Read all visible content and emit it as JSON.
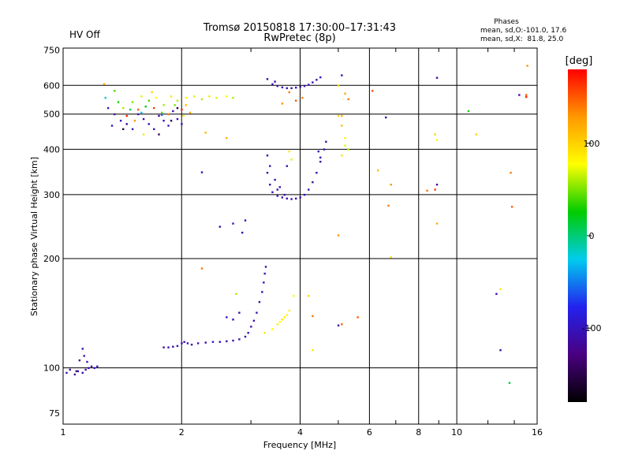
{
  "status_label": "HV Off",
  "status_color": "#dd0000",
  "title_line1": "Tromsø 20150818 17:30:00–17:31:43",
  "title_line2": "RwPretec (8p)",
  "phases": {
    "heading": "Phases",
    "line_o": "mean, sd,O:-101.0, 17.6",
    "line_x": "mean, sd,X:  81.8, 25.0"
  },
  "chart_data": {
    "type": "scatter",
    "xlabel": "Frequency [MHz]",
    "ylabel": "Stationary phase Virtual Height [km]",
    "x_scale": "log",
    "y_scale": "log",
    "xlim": [
      1,
      16
    ],
    "ylim": [
      70,
      760
    ],
    "x_ticks": [
      1,
      2,
      4,
      6,
      8,
      10,
      16
    ],
    "x_minor": [
      3,
      5,
      7,
      9,
      12,
      14
    ],
    "y_ticks": [
      75,
      100,
      200,
      300,
      400,
      500,
      600,
      750
    ],
    "grid": true,
    "colorbar": {
      "label": "[deg]",
      "range": [
        -180,
        180
      ],
      "ticks": [
        100,
        0,
        -100
      ],
      "colors": [
        "#000000",
        "#4a0080",
        "#2222ee",
        "#00ccee",
        "#00cc00",
        "#ffff00",
        "#ff9900",
        "#ff0000"
      ]
    },
    "series": [
      {
        "points": [
          [
            1.02,
            97,
            -105
          ],
          [
            1.04,
            99,
            -110
          ],
          [
            1.07,
            96,
            -120
          ],
          [
            1.09,
            98,
            -100
          ],
          [
            1.12,
            97,
            -110
          ],
          [
            1.14,
            99,
            -105
          ],
          [
            1.16,
            100,
            -115
          ],
          [
            1.18,
            101,
            -110
          ],
          [
            1.2,
            100,
            -100
          ],
          [
            1.22,
            101,
            -105
          ],
          [
            1.13,
            108,
            -110
          ],
          [
            1.1,
            105,
            -120
          ],
          [
            1.15,
            104,
            -100
          ],
          [
            1.12,
            113,
            -105
          ],
          [
            1.08,
            98,
            -130
          ]
        ]
      },
      {
        "points": [
          [
            1.8,
            114,
            -110
          ],
          [
            1.85,
            114,
            -105
          ],
          [
            1.9,
            114.5,
            -110
          ],
          [
            1.95,
            115,
            -100
          ],
          [
            2.0,
            117,
            -105
          ],
          [
            2.03,
            118,
            -110
          ],
          [
            2.07,
            117,
            -100
          ],
          [
            2.12,
            116,
            -110
          ],
          [
            2.2,
            117,
            -105
          ],
          [
            2.3,
            117.5,
            -110
          ],
          [
            2.4,
            118,
            -100
          ],
          [
            2.5,
            118,
            -105
          ],
          [
            2.6,
            118.5,
            -110
          ],
          [
            2.7,
            119,
            -100
          ],
          [
            2.8,
            120,
            -105
          ],
          [
            2.9,
            122,
            -110
          ],
          [
            2.95,
            125,
            -100
          ],
          [
            3.0,
            130,
            -105
          ],
          [
            3.05,
            135,
            -110
          ],
          [
            3.1,
            142,
            -100
          ],
          [
            3.15,
            152,
            -105
          ],
          [
            3.2,
            162,
            -110
          ],
          [
            3.23,
            172,
            -100
          ],
          [
            3.25,
            182,
            -105
          ],
          [
            3.27,
            190,
            -110
          ]
        ]
      },
      {
        "points": [
          [
            2.6,
            138,
            -100
          ],
          [
            2.7,
            136,
            -110
          ],
          [
            2.8,
            142,
            -105
          ],
          [
            2.75,
            160,
            60
          ],
          [
            2.85,
            236,
            -110
          ],
          [
            2.9,
            255,
            -105
          ],
          [
            2.5,
            245,
            -110
          ],
          [
            2.7,
            250,
            -100
          ],
          [
            2.25,
            346,
            -105
          ],
          [
            2.25,
            188,
            140
          ]
        ]
      },
      {
        "points": [
          [
            3.4,
            128,
            80
          ],
          [
            3.5,
            132,
            85
          ],
          [
            3.55,
            134,
            80
          ],
          [
            3.6,
            136,
            90
          ],
          [
            3.65,
            138,
            85
          ],
          [
            3.7,
            140,
            80
          ],
          [
            3.75,
            144,
            85
          ],
          [
            3.25,
            125,
            90
          ],
          [
            3.85,
            158,
            80
          ],
          [
            4.3,
            112,
            90
          ],
          [
            4.2,
            158,
            100
          ],
          [
            4.3,
            139,
            140
          ]
        ]
      },
      {
        "points": [
          [
            3.3,
            345,
            -110
          ],
          [
            3.35,
            320,
            -105
          ],
          [
            3.4,
            305,
            -110
          ],
          [
            3.5,
            298,
            -100
          ],
          [
            3.6,
            295,
            -105
          ],
          [
            3.7,
            293,
            -110
          ],
          [
            3.8,
            292,
            -100
          ],
          [
            3.9,
            293,
            -105
          ],
          [
            4.0,
            295,
            -110
          ],
          [
            4.1,
            300,
            -100
          ],
          [
            4.2,
            310,
            -105
          ],
          [
            4.3,
            325,
            -110
          ],
          [
            4.4,
            345,
            -100
          ],
          [
            4.5,
            370,
            -105
          ],
          [
            4.6,
            400,
            -110
          ],
          [
            4.65,
            420,
            -105
          ],
          [
            3.3,
            385,
            -110
          ],
          [
            3.35,
            360,
            -100
          ],
          [
            3.45,
            330,
            -105
          ],
          [
            3.55,
            315,
            -110
          ],
          [
            3.7,
            360,
            -100
          ],
          [
            3.75,
            395,
            90
          ],
          [
            3.8,
            375,
            70
          ],
          [
            4.45,
            395,
            -110
          ],
          [
            4.5,
            380,
            -100
          ],
          [
            3.5,
            310,
            -105
          ],
          [
            3.65,
            300,
            -110
          ]
        ]
      },
      {
        "points": [
          [
            3.3,
            625,
            -110
          ],
          [
            3.4,
            605,
            -105
          ],
          [
            3.5,
            598,
            -110
          ],
          [
            3.6,
            593,
            -100
          ],
          [
            3.7,
            590,
            -105
          ],
          [
            3.8,
            590,
            -110
          ],
          [
            3.9,
            592,
            -100
          ],
          [
            4.0,
            595,
            -105
          ],
          [
            4.1,
            598,
            -110
          ],
          [
            4.2,
            603,
            -100
          ],
          [
            4.3,
            612,
            -105
          ],
          [
            4.4,
            622,
            -110
          ],
          [
            4.5,
            632,
            -100
          ],
          [
            3.45,
            615,
            -105
          ],
          [
            3.75,
            575,
            140
          ],
          [
            4.05,
            555,
            140
          ],
          [
            3.6,
            535,
            130
          ],
          [
            3.9,
            545,
            150
          ]
        ]
      },
      {
        "points": [
          [
            1.3,
            520,
            -100
          ],
          [
            1.35,
            500,
            -110
          ],
          [
            1.4,
            480,
            -105
          ],
          [
            1.45,
            470,
            -115
          ],
          [
            1.5,
            455,
            -100
          ],
          [
            1.55,
            500,
            -105
          ],
          [
            1.6,
            485,
            -110
          ],
          [
            1.65,
            470,
            -100
          ],
          [
            1.7,
            455,
            -105
          ],
          [
            1.75,
            495,
            -110
          ],
          [
            1.8,
            480,
            -100
          ],
          [
            1.85,
            465,
            -105
          ],
          [
            1.9,
            510,
            -110
          ],
          [
            1.95,
            485,
            -100
          ],
          [
            2.0,
            470,
            -105
          ],
          [
            1.33,
            465,
            -100
          ],
          [
            1.42,
            520,
            60
          ],
          [
            1.5,
            540,
            50
          ],
          [
            1.58,
            560,
            70
          ],
          [
            1.65,
            545,
            40
          ],
          [
            1.72,
            555,
            80
          ],
          [
            1.8,
            530,
            60
          ],
          [
            1.88,
            560,
            90
          ],
          [
            1.95,
            545,
            60
          ],
          [
            2.05,
            555,
            80
          ],
          [
            2.15,
            560,
            70
          ],
          [
            2.25,
            550,
            60
          ],
          [
            2.35,
            560,
            90
          ],
          [
            2.45,
            555,
            70
          ],
          [
            2.6,
            560,
            80
          ],
          [
            2.7,
            555,
            60
          ],
          [
            1.38,
            540,
            30
          ],
          [
            1.48,
            515,
            10
          ],
          [
            1.62,
            525,
            20
          ],
          [
            1.78,
            505,
            40
          ],
          [
            1.92,
            530,
            50
          ],
          [
            2.02,
            495,
            90
          ],
          [
            2.1,
            505,
            120
          ],
          [
            1.45,
            495,
            170
          ],
          [
            1.55,
            515,
            150
          ],
          [
            1.7,
            520,
            160
          ],
          [
            1.85,
            500,
            140
          ],
          [
            2.0,
            515,
            170
          ],
          [
            1.52,
            480,
            130
          ],
          [
            1.28,
            555,
            -20
          ],
          [
            1.35,
            580,
            40
          ],
          [
            1.6,
            440,
            90
          ],
          [
            2.3,
            445,
            110
          ],
          [
            2.6,
            430,
            120
          ],
          [
            1.95,
            520,
            -150
          ],
          [
            1.75,
            440,
            -140
          ],
          [
            1.42,
            455,
            -150
          ],
          [
            1.68,
            575,
            100
          ],
          [
            1.78,
            498,
            -60
          ],
          [
            1.58,
            505,
            -30
          ],
          [
            2.05,
            530,
            110
          ],
          [
            1.88,
            480,
            -150
          ],
          [
            1.27,
            605,
            130
          ]
        ]
      },
      {
        "points": [
          [
            5.1,
            640,
            -110
          ],
          [
            5.0,
            600,
            100
          ],
          [
            5.2,
            570,
            120
          ],
          [
            5.3,
            550,
            140
          ],
          [
            5.0,
            495,
            100
          ],
          [
            5.1,
            465,
            110
          ],
          [
            5.2,
            430,
            80
          ],
          [
            5.2,
            410,
            70
          ],
          [
            5.3,
            400,
            60
          ],
          [
            5.1,
            385,
            90
          ],
          [
            6.1,
            580,
            150
          ],
          [
            6.6,
            490,
            -110
          ],
          [
            6.3,
            350,
            110
          ],
          [
            6.8,
            320,
            130
          ],
          [
            6.7,
            280,
            140
          ],
          [
            6.8,
            202,
            90
          ],
          [
            5.0,
            232,
            130
          ],
          [
            5.6,
            138,
            150
          ],
          [
            5.1,
            132,
            150
          ],
          [
            5.0,
            131,
            -110
          ],
          [
            8.4,
            308,
            140
          ],
          [
            8.8,
            310,
            160
          ],
          [
            8.9,
            320,
            -110
          ],
          [
            8.9,
            250,
            120
          ],
          [
            8.8,
            440,
            100
          ],
          [
            8.9,
            425,
            80
          ],
          [
            8.9,
            630,
            -120
          ],
          [
            10.7,
            510,
            30
          ],
          [
            11.2,
            440,
            100
          ],
          [
            12.6,
            160,
            -110
          ],
          [
            12.9,
            165,
            90
          ],
          [
            12.9,
            112,
            -110
          ],
          [
            13.6,
            91,
            10
          ],
          [
            13.7,
            345,
            140
          ],
          [
            13.8,
            278,
            150
          ],
          [
            14.4,
            565,
            -110
          ],
          [
            15.0,
            565,
            150
          ],
          [
            15.0,
            558,
            170
          ],
          [
            15.1,
            680,
            130
          ],
          [
            5.1,
            495,
            120
          ]
        ]
      }
    ]
  }
}
